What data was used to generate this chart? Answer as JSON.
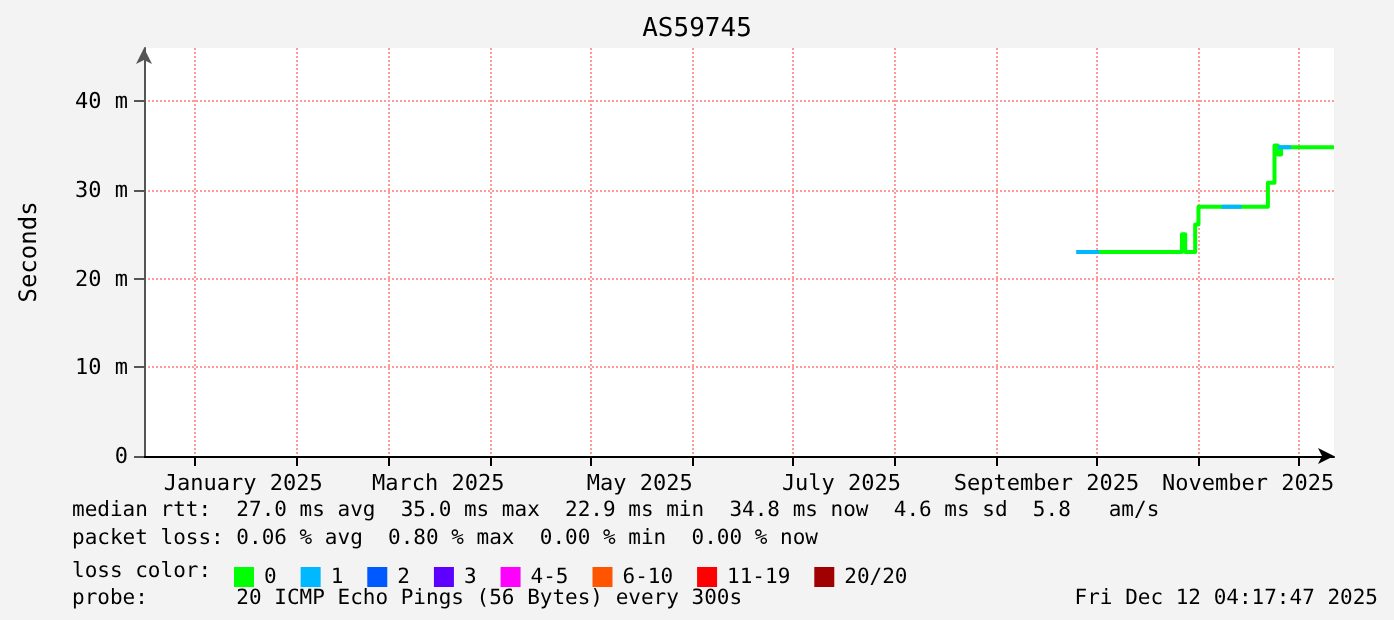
{
  "chart_data": {
    "type": "step",
    "title": "AS59745",
    "ylabel": "Seconds",
    "legend_title": "loss color:",
    "x": [
      "2025-10-01",
      "2025-10-26",
      "2025-10-27",
      "2025-10-28",
      "2025-10-31",
      "2025-11-01",
      "2025-11-22",
      "2025-11-24",
      "2025-11-25",
      "2025-11-26",
      "2025-12-12"
    ],
    "series": [
      {
        "name": "0",
        "color": "#00ff00",
        "values": [
          23.0,
          23.0,
          25.0,
          23.0,
          26.1,
          28.1,
          30.8,
          35.0,
          34.0,
          34.8,
          34.8
        ]
      },
      {
        "name": "1",
        "color": "#00b8ff",
        "x": [
          "2025-09-25",
          "2025-10-01",
          "2025-10-02",
          "2025-11-08",
          "2025-11-13",
          "2025-11-14",
          "2025-11-25",
          "2025-11-29"
        ],
        "values": [
          23.0,
          23.0,
          null,
          28.1,
          28.1,
          null,
          34.8,
          34.8
        ]
      },
      {
        "name": "2",
        "color": "#0059ff",
        "values": [
          null,
          null,
          null,
          null,
          null,
          null,
          null,
          null,
          null,
          null,
          null
        ]
      },
      {
        "name": "3",
        "color": "#5e00ff",
        "values": [
          null,
          null,
          null,
          null,
          null,
          null,
          null,
          null,
          null,
          null,
          null
        ]
      },
      {
        "name": "4-5",
        "color": "#ff00ff",
        "values": [
          null,
          null,
          null,
          null,
          null,
          null,
          null,
          null,
          null,
          null,
          null
        ]
      },
      {
        "name": "6-10",
        "color": "#ff5500",
        "values": [
          null,
          null,
          null,
          null,
          null,
          null,
          null,
          null,
          null,
          null,
          null
        ]
      },
      {
        "name": "11-19",
        "color": "#ff0000",
        "values": [
          null,
          null,
          null,
          null,
          null,
          null,
          null,
          null,
          null,
          null,
          null
        ]
      },
      {
        "name": "20/20",
        "color": "#a10000",
        "values": [
          null,
          null,
          null,
          null,
          null,
          null,
          null,
          null,
          null,
          null,
          null
        ]
      }
    ],
    "xlim": [
      "2024-12-17",
      "2025-12-12"
    ],
    "xticks": [
      {
        "value": "2025-01-01",
        "label": null
      },
      {
        "value": "2025-02-01",
        "label": null
      },
      {
        "value": "2025-03-01",
        "label": null
      },
      {
        "value": "2025-04-01",
        "label": null
      },
      {
        "value": "2025-05-01",
        "label": null
      },
      {
        "value": "2025-06-01",
        "label": null
      },
      {
        "value": "2025-07-01",
        "label": null
      },
      {
        "value": "2025-08-01",
        "label": null
      },
      {
        "value": "2025-09-01",
        "label": null
      },
      {
        "value": "2025-10-01",
        "label": null
      },
      {
        "value": "2025-11-01",
        "label": null
      },
      {
        "value": "2025-12-01",
        "label": null
      },
      {
        "value": "2025-01-16",
        "label": "January 2025"
      },
      {
        "value": "2025-03-16",
        "label": "March 2025"
      },
      {
        "value": "2025-05-16",
        "label": "May 2025"
      },
      {
        "value": "2025-07-16",
        "label": "July 2025"
      },
      {
        "value": "2025-09-16",
        "label": "September 2025"
      },
      {
        "value": "2025-11-16",
        "label": "November 2025"
      }
    ],
    "ylim": [
      0,
      46
    ],
    "yticks": [
      0,
      {
        "value": 10,
        "label": "10 m"
      },
      {
        "value": 20,
        "label": "20 m"
      },
      {
        "value": 30,
        "label": "30 m"
      },
      {
        "value": 40,
        "label": "40 m"
      }
    ],
    "grid": true,
    "legend": "bottom",
    "marker": "none",
    "annotations": [
      "median rtt:  27.0 ms avg  35.0 ms max  22.9 ms min  34.8 ms now  4.6 ms sd  5.8   am/s",
      "packet loss: 0.06 % avg  0.80 % max  0.00 % min  0.00 % now",
      "probe:       20 ICMP Echo Pings (56 Bytes) every 300s",
      "Fri Dec 12 04:17:47 2025"
    ]
  }
}
